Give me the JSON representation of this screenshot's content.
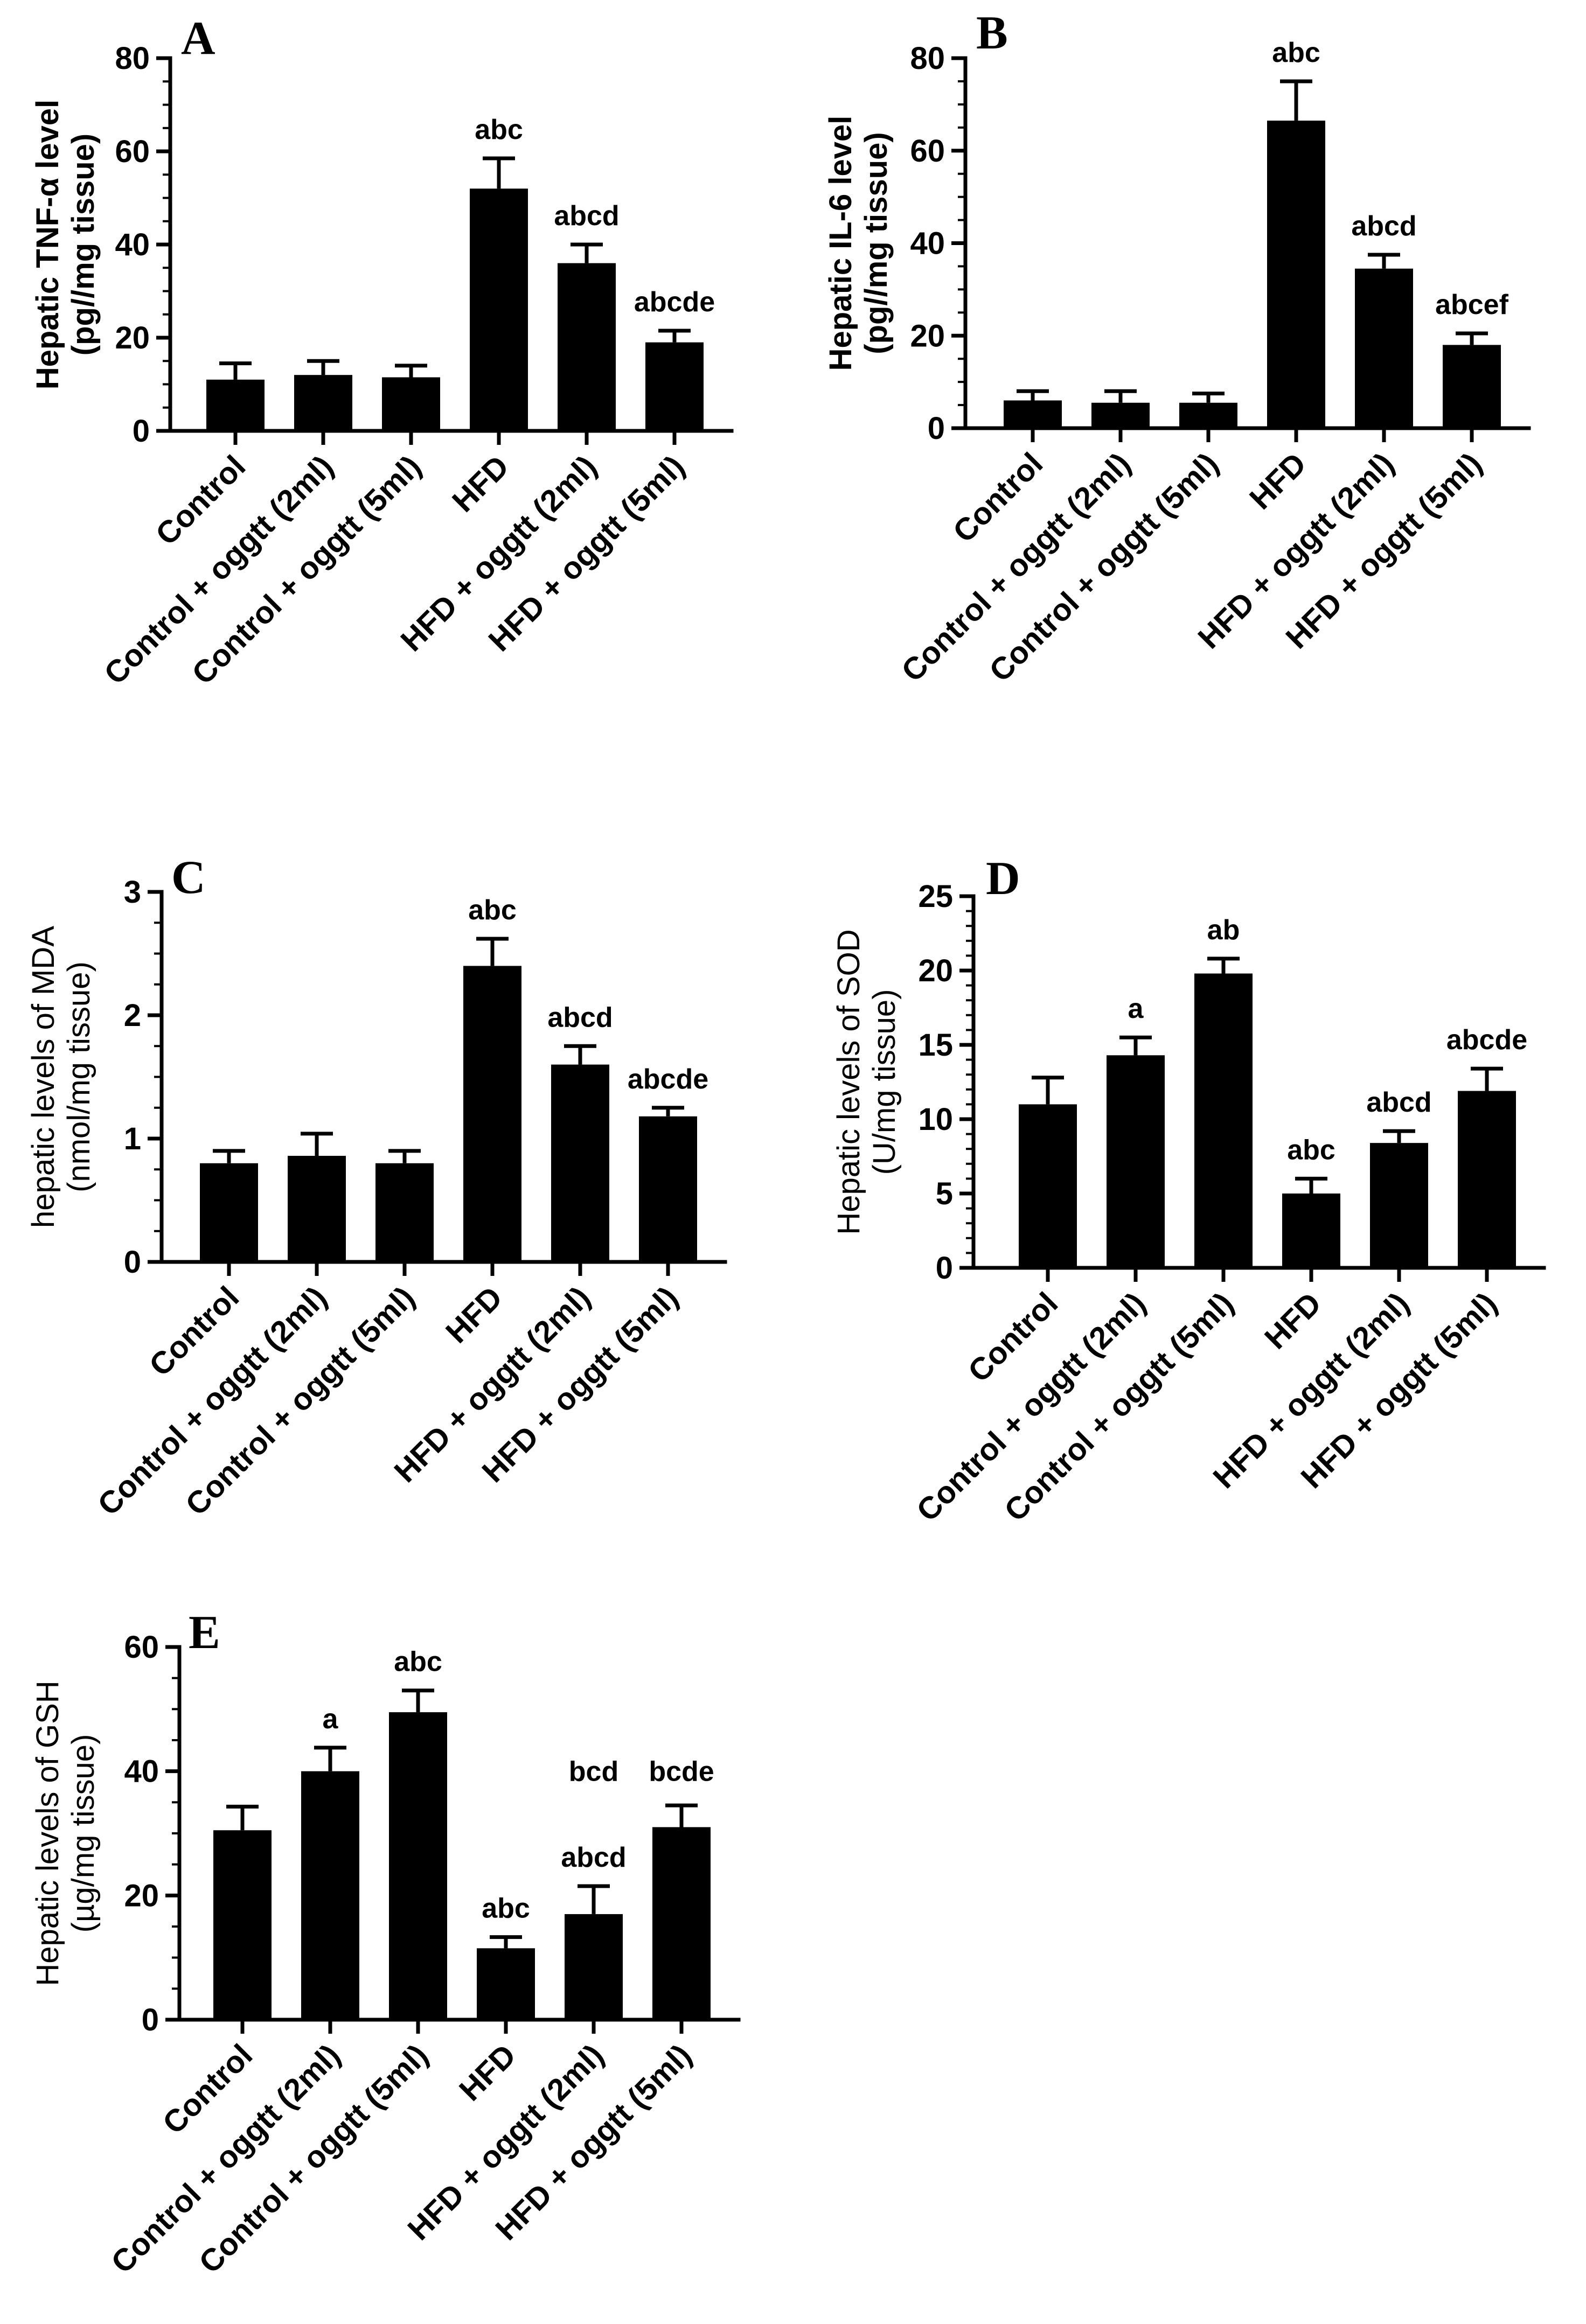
{
  "figure": {
    "categories": [
      "Control",
      "Control + oggtt (2ml)",
      "Control + oggtt (5ml)",
      "HFD",
      "HFD + oggtt (2ml)",
      "HFD + oggtt (5ml)"
    ],
    "bar_color": "#000000"
  },
  "chart_data": [
    {
      "type": "bar",
      "panel": "A",
      "ylabel_line1": "Hepatic TNF-α level",
      "ylabel_line2": "(pg//mg tissue)",
      "ylabel_style": "bold",
      "ylim": [
        0,
        80
      ],
      "ticks": [
        0,
        20,
        40,
        60,
        80
      ],
      "minor_step": 5,
      "categories": [
        "Control",
        "Control + oggtt (2ml)",
        "Control + oggtt (5ml)",
        "HFD",
        "HFD + oggtt (2ml)",
        "HFD + oggtt (5ml)"
      ],
      "values": [
        11,
        12,
        11.5,
        52,
        36,
        19
      ],
      "errors": [
        3.5,
        3,
        2.5,
        6.5,
        4,
        2.5
      ],
      "annotations": [
        {
          "bar": 3,
          "text": "abc"
        },
        {
          "bar": 4,
          "text": "abcd"
        },
        {
          "bar": 5,
          "text": "abcde"
        }
      ]
    },
    {
      "type": "bar",
      "panel": "B",
      "ylabel_line1": "Hepatic IL-6 level",
      "ylabel_line2": "(pg//mg tissue)",
      "ylabel_style": "bold",
      "ylim": [
        0,
        80
      ],
      "ticks": [
        0,
        20,
        40,
        60,
        80
      ],
      "minor_step": 5,
      "categories": [
        "Control",
        "Control + oggtt (2ml)",
        "Control + oggtt (5ml)",
        "HFD",
        "HFD + oggtt (2ml)",
        "HFD + oggtt (5ml)"
      ],
      "values": [
        6,
        5.5,
        5.5,
        66.5,
        34.5,
        18
      ],
      "errors": [
        2,
        2.5,
        2,
        8.5,
        3,
        2.5
      ],
      "annotations": [
        {
          "bar": 3,
          "text": "abc"
        },
        {
          "bar": 4,
          "text": "abcd"
        },
        {
          "bar": 5,
          "text": "abcef"
        }
      ]
    },
    {
      "type": "bar",
      "panel": "C",
      "ylabel_line1": "hepatic levels of MDA",
      "ylabel_line2": "(nmol/mg tissue)",
      "ylabel_style": "normal",
      "ylim": [
        0,
        3
      ],
      "ticks": [
        0,
        1,
        2,
        3
      ],
      "minor_step": 0.25,
      "categories": [
        "Control",
        "Control + oggtt (2ml)",
        "Control + oggtt (5ml)",
        "HFD",
        "HFD + oggtt (2ml)",
        "HFD + oggtt (5ml)"
      ],
      "values": [
        0.8,
        0.86,
        0.8,
        2.4,
        1.6,
        1.18
      ],
      "errors": [
        0.1,
        0.18,
        0.1,
        0.22,
        0.15,
        0.07
      ],
      "annotations": [
        {
          "bar": 3,
          "text": "abc"
        },
        {
          "bar": 4,
          "text": "abcd"
        },
        {
          "bar": 5,
          "text": "abcde"
        }
      ]
    },
    {
      "type": "bar",
      "panel": "D",
      "ylabel_line1": "Hepatic levels of SOD",
      "ylabel_line2": "(U/mg tissue)",
      "ylabel_style": "normal",
      "ylim": [
        0,
        25
      ],
      "ticks": [
        0,
        5,
        10,
        15,
        20,
        25
      ],
      "minor_step": 1,
      "categories": [
        "Control",
        "Control + oggtt (2ml)",
        "Control + oggtt (5ml)",
        "HFD",
        "HFD + oggtt (2ml)",
        "HFD + oggtt (5ml)"
      ],
      "values": [
        11,
        14.3,
        19.8,
        5,
        8.4,
        11.9
      ],
      "errors": [
        1.8,
        1.2,
        1,
        1,
        0.8,
        1.5
      ],
      "annotations": [
        {
          "bar": 1,
          "text": "a"
        },
        {
          "bar": 2,
          "text": "ab"
        },
        {
          "bar": 3,
          "text": "abc"
        },
        {
          "bar": 4,
          "text": "abcd"
        },
        {
          "bar": 5,
          "text": "abcde"
        }
      ]
    },
    {
      "type": "bar",
      "panel": "E",
      "ylabel_line1": "Hepatic levels of GSH",
      "ylabel_line2": "(µg/mg tissue)",
      "ylabel_style": "normal",
      "ylim": [
        0,
        60
      ],
      "ticks": [
        0,
        20,
        40,
        60
      ],
      "minor_step": 5,
      "categories": [
        "Control",
        "Control + oggtt (2ml)",
        "Control + oggtt (5ml)",
        "HFD",
        "HFD + oggtt (2ml)",
        "HFD + oggtt (5ml)"
      ],
      "values": [
        30.5,
        40,
        49.5,
        11.5,
        17,
        31
      ],
      "errors": [
        3.8,
        3.8,
        3.5,
        1.8,
        4.5,
        3.5
      ],
      "annotations": [
        {
          "bar": 1,
          "text": "a"
        },
        {
          "bar": 2,
          "text": "abc"
        },
        {
          "bar": 3,
          "text": "abc"
        },
        {
          "bar": 4,
          "text": "abcd"
        },
        {
          "bar": 4,
          "text": "bcd",
          "position": "above-y-axis-level"
        },
        {
          "bar": 5,
          "text": "bcde",
          "position": "above-y-axis-level"
        }
      ]
    }
  ]
}
